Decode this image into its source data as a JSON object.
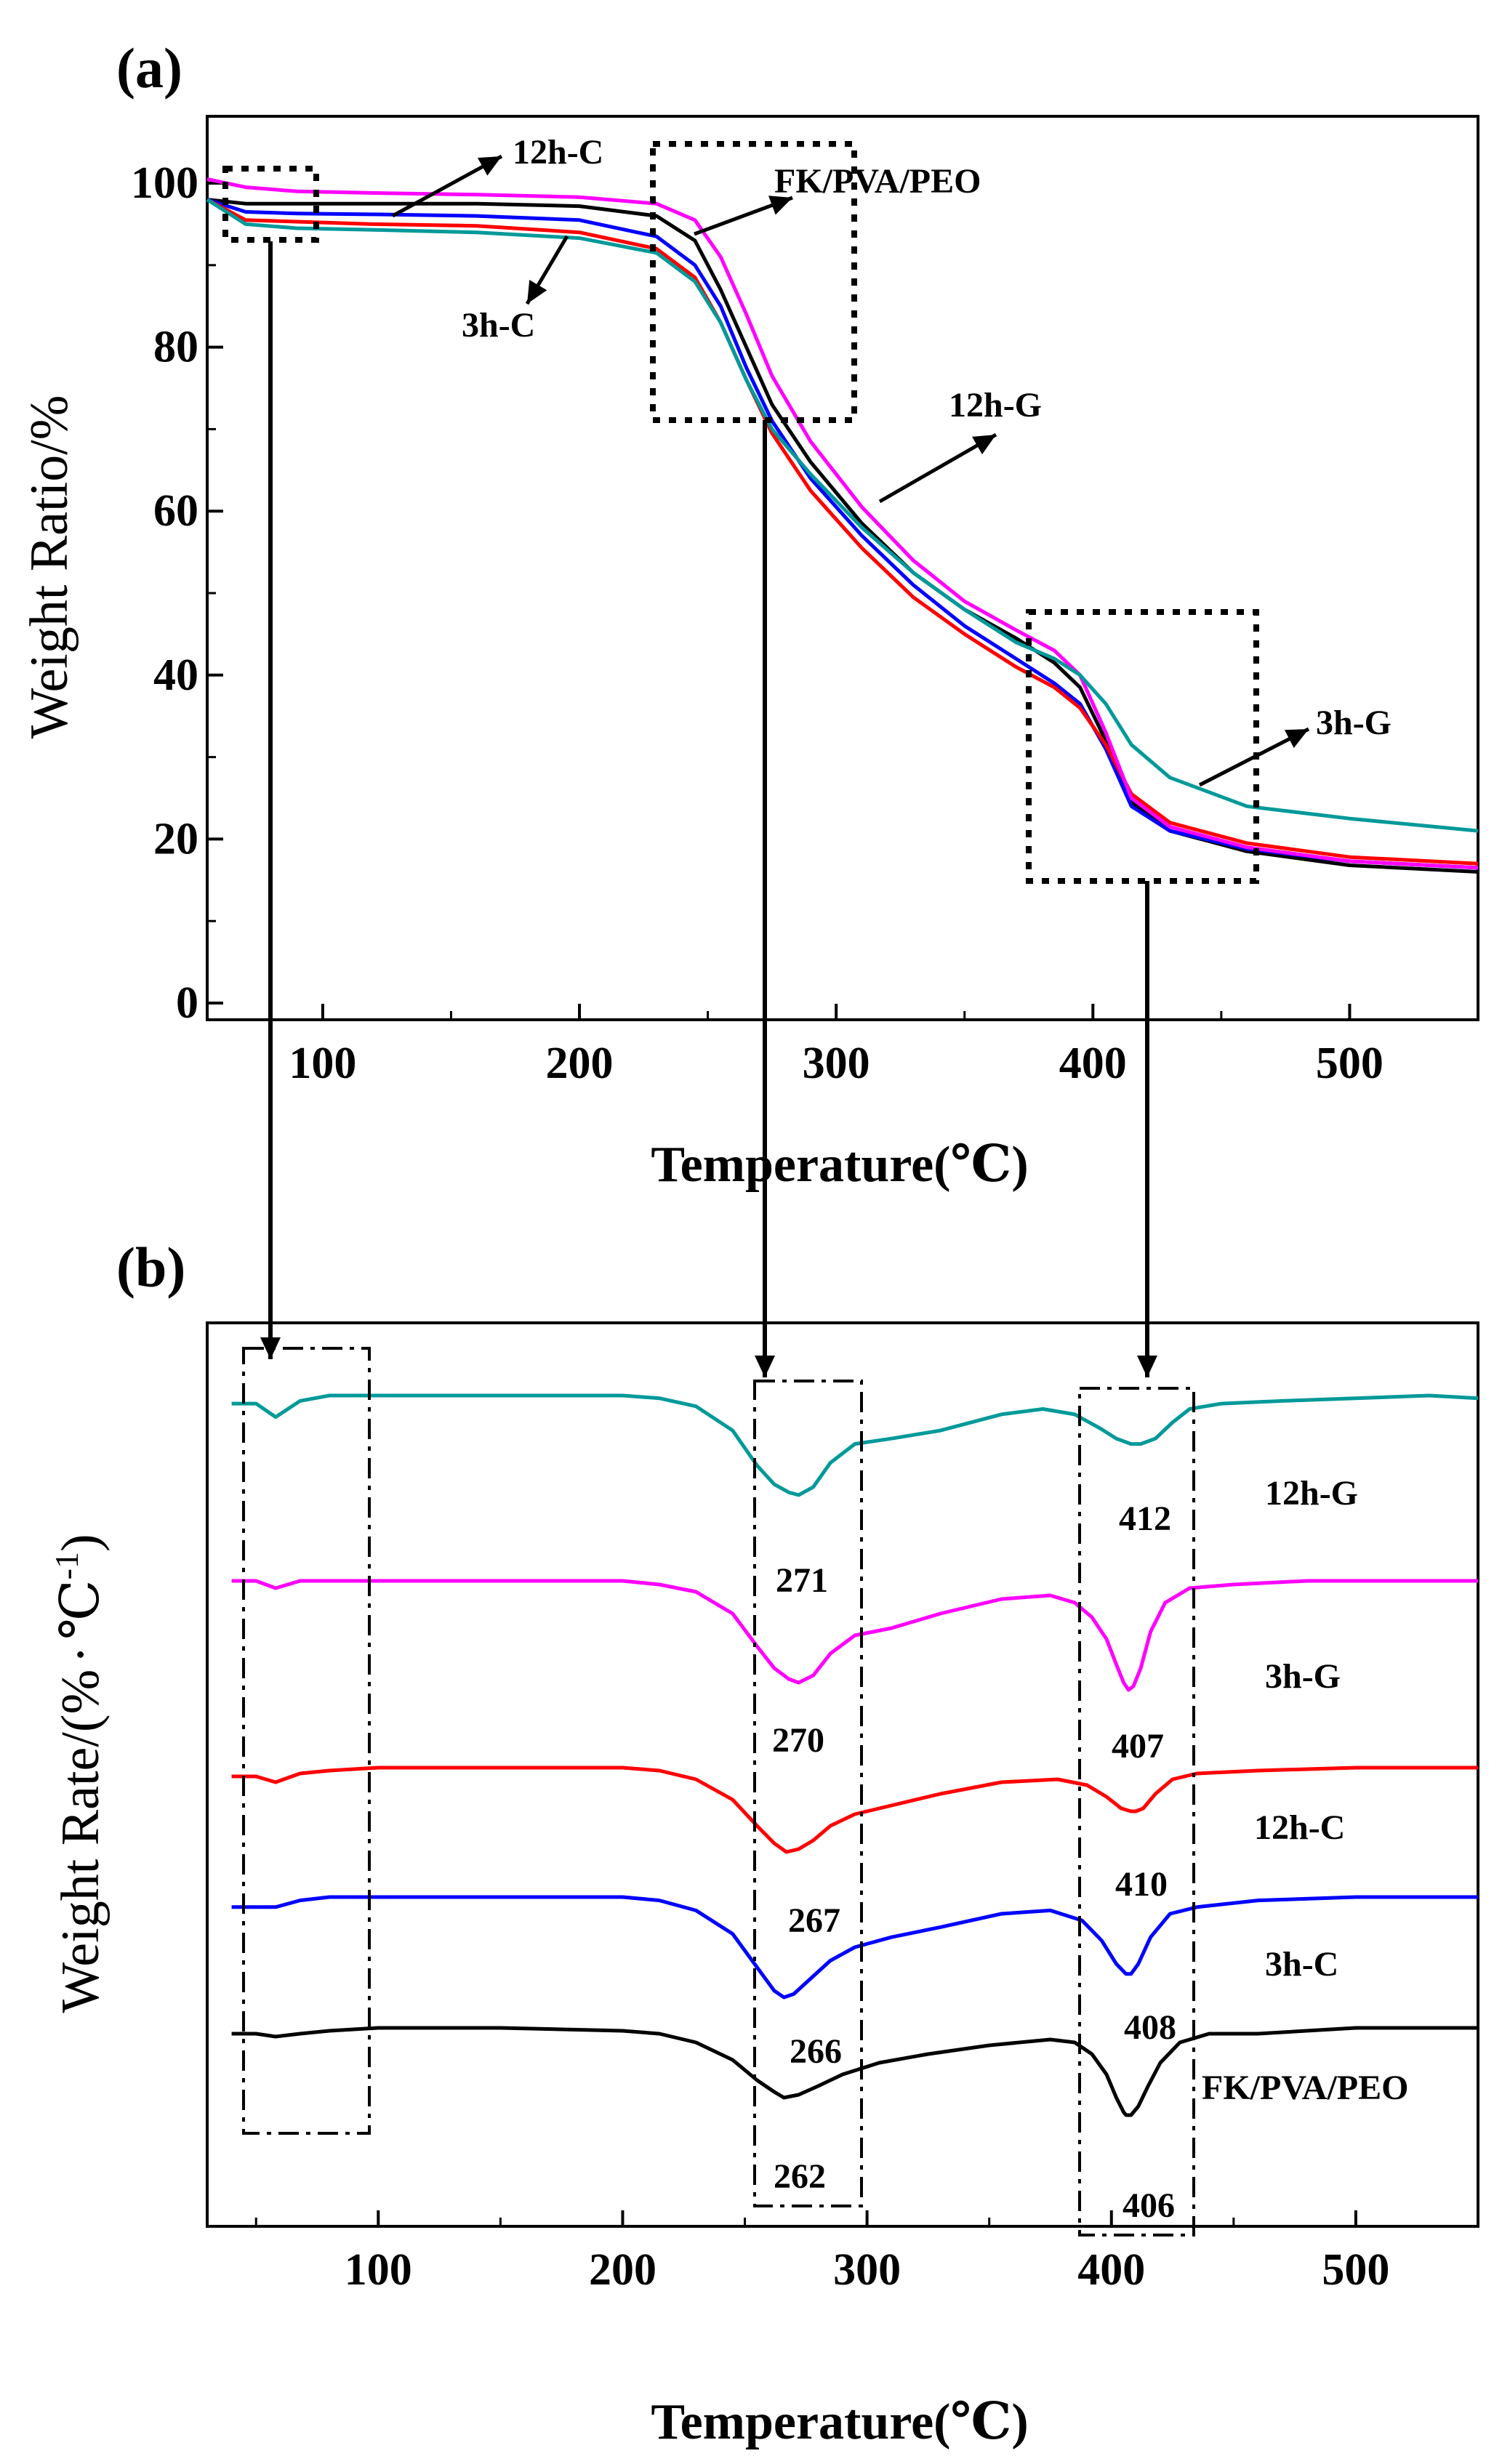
{
  "chart_data": [
    {
      "panel_label": "(a)",
      "type": "line",
      "xlabel": "Temperature(℃)",
      "ylabel": "Weight Ratio/%",
      "xlim": [
        55,
        550
      ],
      "ylim": [
        0,
        104
      ],
      "xticks": [
        100,
        200,
        300,
        400,
        500
      ],
      "yticks": [
        0,
        20,
        40,
        60,
        80,
        100
      ],
      "series": [
        {
          "name": "FK/PVA/PEO",
          "color": "#000000",
          "x": [
            55,
            70,
            90,
            120,
            160,
            200,
            230,
            245,
            255,
            265,
            275,
            290,
            310,
            330,
            350,
            370,
            385,
            395,
            405,
            415,
            430,
            460,
            500,
            550
          ],
          "y": [
            98.0,
            97.5,
            97.5,
            97.5,
            97.5,
            97.2,
            96.0,
            93.0,
            87.0,
            80.0,
            73.0,
            66.0,
            58.5,
            52.5,
            48.0,
            44.5,
            41.5,
            38.5,
            32.0,
            24.5,
            21.0,
            18.5,
            16.8,
            16.0
          ]
        },
        {
          "name": "3h-C",
          "color": "#0000ff",
          "x": [
            55,
            70,
            90,
            120,
            160,
            200,
            230,
            245,
            255,
            265,
            275,
            290,
            310,
            330,
            350,
            370,
            385,
            395,
            405,
            415,
            430,
            460,
            500,
            550
          ],
          "y": [
            98.0,
            96.5,
            96.3,
            96.2,
            96.0,
            95.5,
            93.5,
            90.0,
            85.0,
            77.5,
            71.0,
            64.0,
            57.0,
            51.0,
            46.0,
            42.0,
            39.0,
            36.5,
            31.0,
            24.0,
            21.0,
            18.8,
            17.3,
            16.5
          ]
        },
        {
          "name": "12h-C",
          "color": "#ff0000",
          "x": [
            55,
            70,
            90,
            120,
            160,
            200,
            230,
            245,
            255,
            265,
            275,
            290,
            310,
            330,
            350,
            370,
            385,
            395,
            405,
            415,
            430,
            460,
            500,
            550
          ],
          "y": [
            98.0,
            95.5,
            95.3,
            95.0,
            94.8,
            94.0,
            92.0,
            88.5,
            83.0,
            76.0,
            69.5,
            62.5,
            55.5,
            49.5,
            45.0,
            41.0,
            38.5,
            36.0,
            31.5,
            25.5,
            22.0,
            19.5,
            17.8,
            17.0
          ]
        },
        {
          "name": "12h-G",
          "color": "#ff00ff",
          "x": [
            55,
            70,
            90,
            120,
            160,
            200,
            230,
            245,
            255,
            265,
            275,
            290,
            310,
            330,
            350,
            370,
            385,
            395,
            405,
            415,
            430,
            460,
            500,
            550
          ],
          "y": [
            100.5,
            99.5,
            99.0,
            98.8,
            98.6,
            98.3,
            97.5,
            95.5,
            91.0,
            84.0,
            76.5,
            68.5,
            60.5,
            54.0,
            49.0,
            45.5,
            43.0,
            40.0,
            33.0,
            25.0,
            21.5,
            19.0,
            17.3,
            16.5
          ]
        },
        {
          "name": "3h-G",
          "color": "#009999",
          "x": [
            55,
            70,
            90,
            120,
            160,
            200,
            230,
            245,
            255,
            265,
            275,
            290,
            310,
            330,
            350,
            370,
            385,
            395,
            405,
            415,
            430,
            460,
            500,
            550
          ],
          "y": [
            98.0,
            95.0,
            94.5,
            94.3,
            94.0,
            93.3,
            91.5,
            88.0,
            83.0,
            76.0,
            70.0,
            64.5,
            58.0,
            52.5,
            48.0,
            44.0,
            42.0,
            40.0,
            36.5,
            31.5,
            27.5,
            24.0,
            22.5,
            21.0
          ]
        }
      ],
      "annotations": [
        {
          "text": "12h-C"
        },
        {
          "text": "FK/PVA/PEO"
        },
        {
          "text": "3h-C"
        },
        {
          "text": "12h-G"
        },
        {
          "text": "3h-G"
        }
      ]
    },
    {
      "panel_label": "(b)",
      "type": "line",
      "xlabel": "Temperature(℃)",
      "ylabel": "Weight Rate/(% · ℃⁻¹)",
      "ylabel_parts": [
        "Weight Rate/(%",
        "·",
        "℃",
        "-1",
        ")"
      ],
      "xlim": [
        30,
        550
      ],
      "xticks": [
        100,
        200,
        300,
        400,
        500
      ],
      "series": [
        {
          "name": "12h-G",
          "color": "#009999",
          "offset": 4,
          "x": [
            40,
            50,
            58,
            68,
            80,
            100,
            150,
            200,
            215,
            230,
            245,
            255,
            262,
            268,
            272,
            278,
            285,
            295,
            310,
            330,
            355,
            372,
            385,
            395,
            402,
            408,
            412,
            418,
            425,
            432,
            445,
            470,
            500,
            530,
            550
          ],
          "y": [
            -0.3,
            -0.3,
            -0.8,
            -0.2,
            0,
            0,
            0,
            0,
            -0.1,
            -0.4,
            -1.3,
            -2.6,
            -3.3,
            -3.6,
            -3.7,
            -3.4,
            -2.5,
            -1.8,
            -1.6,
            -1.3,
            -0.7,
            -0.5,
            -0.7,
            -1.2,
            -1.6,
            -1.8,
            -1.8,
            -1.6,
            -1.0,
            -0.5,
            -0.3,
            -0.2,
            -0.1,
            0,
            -0.1
          ]
        },
        {
          "name": "3h-G",
          "color": "#ff00ff",
          "offset": 3,
          "x": [
            40,
            50,
            58,
            68,
            80,
            100,
            150,
            200,
            215,
            230,
            245,
            255,
            262,
            268,
            272,
            278,
            285,
            295,
            310,
            330,
            355,
            375,
            385,
            392,
            398,
            402,
            405,
            407,
            409,
            412,
            416,
            422,
            432,
            450,
            480,
            520,
            550
          ],
          "y": [
            0,
            0,
            -0.2,
            0,
            0,
            0,
            0,
            0,
            -0.1,
            -0.3,
            -0.9,
            -1.8,
            -2.4,
            -2.7,
            -2.8,
            -2.6,
            -2.0,
            -1.5,
            -1.3,
            -0.9,
            -0.5,
            -0.4,
            -0.6,
            -1.0,
            -1.6,
            -2.3,
            -2.8,
            -3.0,
            -2.9,
            -2.4,
            -1.4,
            -0.6,
            -0.2,
            -0.1,
            0,
            0,
            0
          ]
        },
        {
          "name": "12h-C",
          "color": "#ff0000",
          "offset": 2,
          "x": [
            40,
            50,
            58,
            68,
            80,
            100,
            150,
            200,
            215,
            230,
            245,
            255,
            262,
            267,
            272,
            278,
            285,
            295,
            310,
            330,
            355,
            378,
            390,
            398,
            404,
            408,
            410,
            413,
            418,
            425,
            435,
            460,
            500,
            550
          ],
          "y": [
            -0.3,
            -0.3,
            -0.5,
            -0.2,
            -0.1,
            0,
            0,
            0,
            -0.1,
            -0.4,
            -1.1,
            -2.0,
            -2.6,
            -2.9,
            -2.8,
            -2.5,
            -2.0,
            -1.6,
            -1.3,
            -0.9,
            -0.5,
            -0.4,
            -0.6,
            -1.0,
            -1.4,
            -1.5,
            -1.5,
            -1.4,
            -0.9,
            -0.4,
            -0.2,
            -0.1,
            0,
            0
          ]
        },
        {
          "name": "3h-C",
          "color": "#0000ff",
          "offset": 1,
          "x": [
            40,
            50,
            58,
            68,
            80,
            100,
            150,
            200,
            215,
            230,
            245,
            255,
            262,
            266,
            270,
            276,
            285,
            295,
            310,
            330,
            355,
            375,
            388,
            396,
            402,
            406,
            408,
            411,
            416,
            424,
            435,
            460,
            500,
            550
          ],
          "y": [
            -0.3,
            -0.3,
            -0.3,
            -0.1,
            0,
            0,
            0,
            0,
            -0.1,
            -0.4,
            -1.1,
            -2.1,
            -2.8,
            -3.0,
            -2.9,
            -2.5,
            -1.9,
            -1.5,
            -1.2,
            -0.9,
            -0.5,
            -0.4,
            -0.7,
            -1.3,
            -2.0,
            -2.3,
            -2.3,
            -2.0,
            -1.2,
            -0.5,
            -0.3,
            -0.1,
            0,
            0
          ]
        },
        {
          "name": "FK/PVA/PEO",
          "color": "#000000",
          "offset": 0,
          "x": [
            40,
            50,
            58,
            68,
            80,
            100,
            150,
            200,
            215,
            230,
            245,
            255,
            262,
            266,
            272,
            280,
            290,
            305,
            325,
            350,
            375,
            385,
            392,
            398,
            402,
            405,
            406,
            408,
            411,
            415,
            420,
            428,
            440,
            460,
            500,
            550
          ],
          "y": [
            -0.2,
            -0.2,
            -0.3,
            -0.2,
            -0.1,
            0,
            0,
            -0.1,
            -0.2,
            -0.5,
            -1.1,
            -1.8,
            -2.2,
            -2.4,
            -2.3,
            -2.0,
            -1.6,
            -1.2,
            -0.9,
            -0.6,
            -0.4,
            -0.5,
            -0.9,
            -1.6,
            -2.4,
            -2.9,
            -3.0,
            -3.0,
            -2.7,
            -2.0,
            -1.2,
            -0.5,
            -0.2,
            -0.2,
            0,
            0
          ]
        }
      ],
      "series_labels": [
        "12h-G",
        "3h-G",
        "12h-C",
        "3h-C",
        "FK/PVA/PEO"
      ],
      "peak_labels": [
        {
          "text": "412",
          "series": "12h-G",
          "x": 412
        },
        {
          "text": "271",
          "series": "12h-G",
          "x": 271
        },
        {
          "text": "270",
          "series": "3h-G",
          "x": 270
        },
        {
          "text": "407",
          "series": "3h-G",
          "x": 407
        },
        {
          "text": "410",
          "series": "12h-C",
          "x": 410
        },
        {
          "text": "267",
          "series": "12h-C",
          "x": 267
        },
        {
          "text": "408",
          "series": "3h-C",
          "x": 408
        },
        {
          "text": "266",
          "series": "3h-C",
          "x": 266
        },
        {
          "text": "262",
          "series": "FK/PVA/PEO",
          "x": 262
        },
        {
          "text": "406",
          "series": "FK/PVA/PEO",
          "x": 406
        }
      ]
    }
  ]
}
